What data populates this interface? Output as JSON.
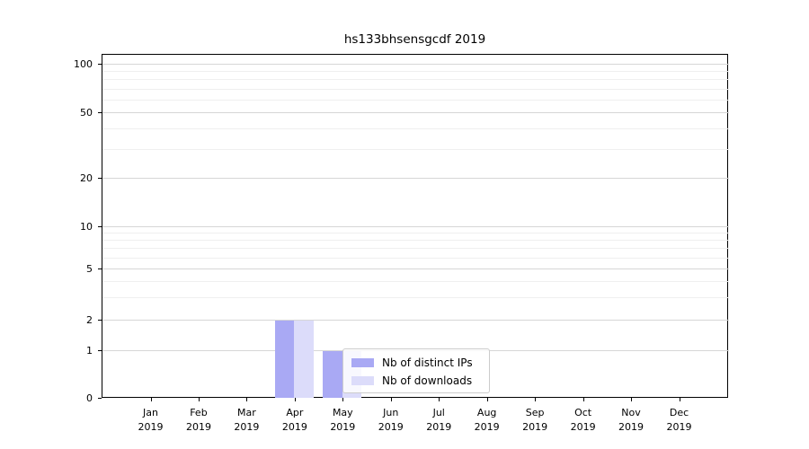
{
  "chart_data": {
    "type": "bar",
    "title": "hs133bhsensgcdf 2019",
    "x_labels": [
      {
        "month": "Jan",
        "year": "2019"
      },
      {
        "month": "Feb",
        "year": "2019"
      },
      {
        "month": "Mar",
        "year": "2019"
      },
      {
        "month": "Apr",
        "year": "2019"
      },
      {
        "month": "May",
        "year": "2019"
      },
      {
        "month": "Jun",
        "year": "2019"
      },
      {
        "month": "Jul",
        "year": "2019"
      },
      {
        "month": "Aug",
        "year": "2019"
      },
      {
        "month": "Sep",
        "year": "2019"
      },
      {
        "month": "Oct",
        "year": "2019"
      },
      {
        "month": "Nov",
        "year": "2019"
      },
      {
        "month": "Dec",
        "year": "2019"
      }
    ],
    "series": [
      {
        "name": "Nb of distinct IPs",
        "color": "#a9a9f4",
        "values": [
          0,
          0,
          0,
          2,
          1,
          0,
          0,
          0,
          0,
          0,
          0,
          0
        ]
      },
      {
        "name": "Nb of downloads",
        "color": "#dcdcfa",
        "values": [
          0,
          0,
          0,
          2,
          1,
          0,
          0,
          0,
          0,
          0,
          0,
          0
        ]
      }
    ],
    "y_scale": "symlog",
    "y_major_ticks": [
      0,
      1,
      2,
      5,
      10,
      20,
      50,
      100
    ],
    "y_minor_gridlines": [
      3,
      4,
      6,
      7,
      8,
      9,
      30,
      40,
      60,
      70,
      80,
      90
    ],
    "ylim": [
      0,
      115
    ],
    "grid": "horizontal",
    "legend_position": "inside-lower-center",
    "colors": {
      "major_grid": "#d6d6d6",
      "minor_grid": "#efefef",
      "axis": "#000000",
      "background": "#ffffff"
    }
  }
}
